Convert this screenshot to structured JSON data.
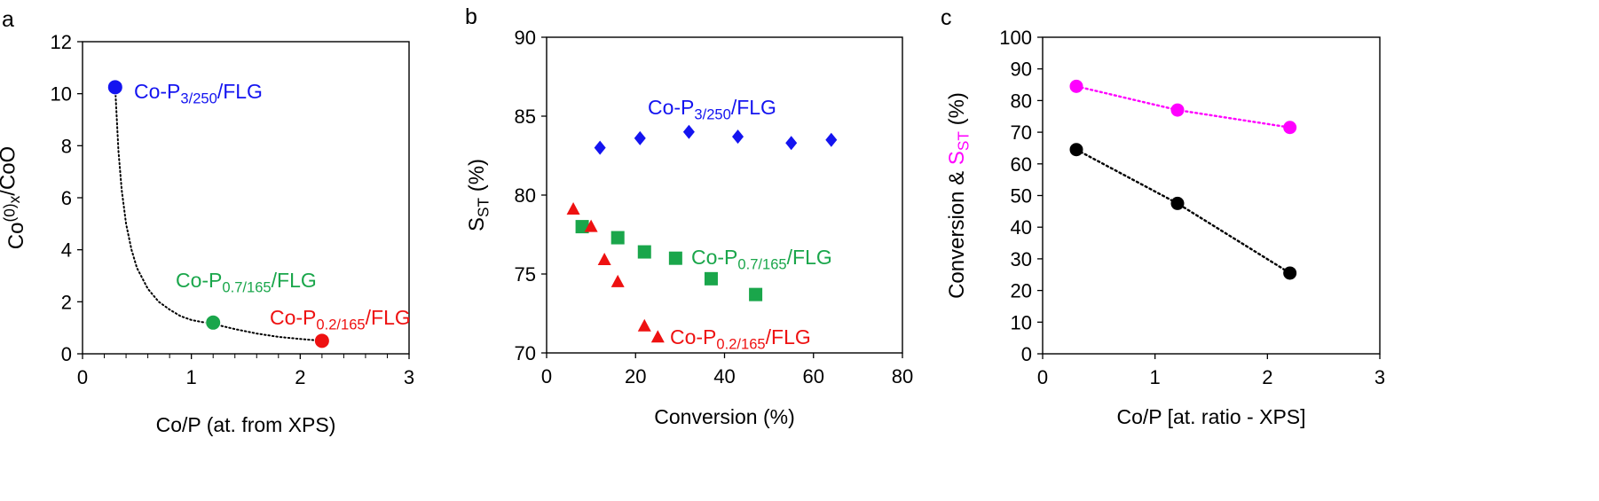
{
  "chart_data": [
    {
      "panel": "a",
      "type": "scatter",
      "xlabel": "Co/P (at. from XPS)",
      "ylabel": {
        "main": "Co",
        "sup": "(0)",
        "rest": "/CoO",
        "sub": "x"
      },
      "xlim": [
        0,
        3
      ],
      "ylim": [
        0,
        12
      ],
      "xticks": [
        0,
        1,
        2,
        3
      ],
      "yticks": [
        0,
        2,
        4,
        6,
        8,
        10,
        12
      ],
      "grid": false,
      "series": [
        {
          "label": {
            "main": "Co-P",
            "sub": "3/250",
            "rest": "/FLG"
          },
          "color": "#1414f0",
          "x": [
            0.3
          ],
          "y": [
            10.25
          ]
        },
        {
          "label": {
            "main": "Co-P",
            "sub": "0.7/165",
            "rest": "/FLG"
          },
          "color": "#1aa64b",
          "x": [
            1.2
          ],
          "y": [
            1.2
          ]
        },
        {
          "label": {
            "main": "Co-P",
            "sub": "0.2/165",
            "rest": "/FLG"
          },
          "color": "#ee1111",
          "x": [
            2.2
          ],
          "y": [
            0.5
          ]
        }
      ],
      "fit_curve": {
        "style": "dotted",
        "color": "#000000",
        "x": [
          0.3,
          0.33,
          0.36,
          0.4,
          0.45,
          0.5,
          0.6,
          0.7,
          0.8,
          0.9,
          1.0,
          1.1,
          1.2,
          1.4,
          1.6,
          1.8,
          2.0,
          2.2
        ],
        "y": [
          10.25,
          7.8,
          6.3,
          5.0,
          4.0,
          3.3,
          2.5,
          2.0,
          1.7,
          1.45,
          1.3,
          1.22,
          1.15,
          0.95,
          0.78,
          0.65,
          0.57,
          0.5
        ]
      }
    },
    {
      "panel": "b",
      "type": "scatter",
      "xlabel": "Conversion (%)",
      "ylabel": {
        "main": "S",
        "sub": "ST",
        "rest": " (%)"
      },
      "xlim": [
        0,
        80
      ],
      "ylim": [
        70,
        90
      ],
      "xticks": [
        0,
        20,
        40,
        60,
        80
      ],
      "yticks": [
        70,
        75,
        80,
        85,
        90
      ],
      "grid": false,
      "series": [
        {
          "label": {
            "main": "Co-P",
            "sub": "3/250",
            "rest": "/FLG"
          },
          "color": "#1414f0",
          "marker": "diamond",
          "x": [
            12,
            21,
            32,
            43,
            55,
            64
          ],
          "y": [
            83.0,
            83.6,
            84.0,
            83.7,
            83.3,
            83.5
          ]
        },
        {
          "label": {
            "main": "Co-P",
            "sub": "0.7/165",
            "rest": "/FLG"
          },
          "color": "#1aa64b",
          "marker": "square",
          "x": [
            8,
            16,
            22,
            29,
            37,
            47
          ],
          "y": [
            78.0,
            77.3,
            76.4,
            76.0,
            74.7,
            73.7
          ]
        },
        {
          "label": {
            "main": "Co-P",
            "sub": "0.2/165",
            "rest": "/FLG"
          },
          "color": "#ee1111",
          "marker": "triangle",
          "x": [
            6,
            10,
            13,
            16,
            22,
            25
          ],
          "y": [
            79.1,
            78.0,
            75.9,
            74.5,
            71.7,
            71.0
          ]
        }
      ]
    },
    {
      "panel": "c",
      "type": "line",
      "xlabel": "Co/P [at. ratio - XPS]",
      "ylabel": {
        "part1": "Conversion & ",
        "main": "S",
        "sub": "ST",
        "rest": " (%)"
      },
      "xlim": [
        0,
        3
      ],
      "ylim": [
        0,
        100
      ],
      "xticks": [
        0,
        1,
        2,
        3
      ],
      "yticks": [
        0,
        10,
        20,
        30,
        40,
        50,
        60,
        70,
        80,
        90,
        100
      ],
      "grid": false,
      "series": [
        {
          "name": "Conversion",
          "color": "#000000",
          "line": "dotted",
          "x": [
            0.3,
            1.2,
            2.2
          ],
          "y": [
            64.5,
            47.5,
            25.5
          ]
        },
        {
          "name": "S_ST",
          "color": "#ff00ff",
          "line": "dotted",
          "x": [
            0.3,
            1.2,
            2.2
          ],
          "y": [
            84.5,
            77.0,
            71.5
          ]
        }
      ]
    }
  ],
  "panel_letters": [
    "a",
    "b",
    "c"
  ]
}
